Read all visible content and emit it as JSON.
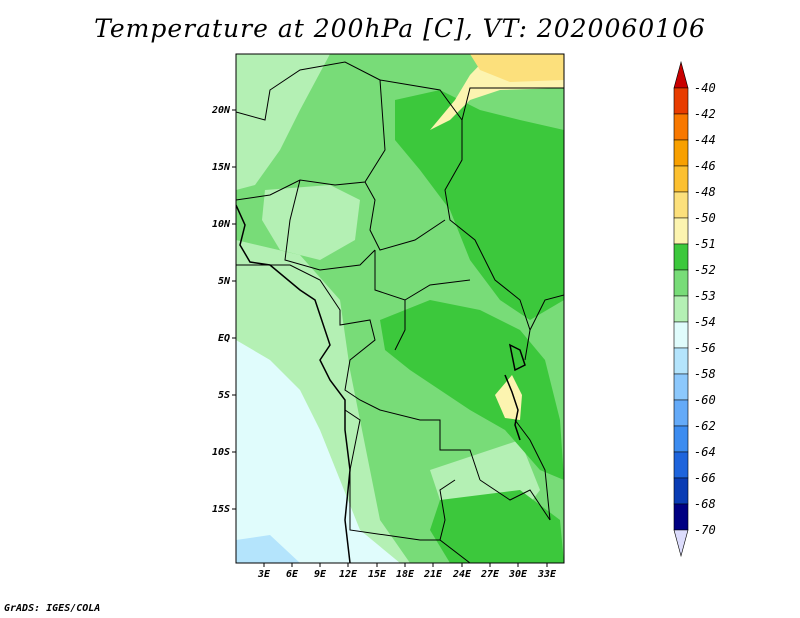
{
  "title": "Temperature at 200hPa [C], VT: 2020060106",
  "footer": "GrADS: IGES/COLA",
  "map": {
    "lat_labels": [
      "20N",
      "15N",
      "10N",
      "5N",
      "EQ",
      "5S",
      "10S",
      "15S"
    ],
    "lon_labels": [
      "3E",
      "6E",
      "9E",
      "12E",
      "15E",
      "18E",
      "21E",
      "24E",
      "27E",
      "30E",
      "33E"
    ]
  },
  "colorbar": {
    "labels": [
      "-40",
      "-42",
      "-44",
      "-46",
      "-48",
      "-50",
      "-51",
      "-52",
      "-53",
      "-54",
      "-56",
      "-58",
      "-60",
      "-62",
      "-64",
      "-66",
      "-68",
      "-70"
    ],
    "colors": [
      "#c80000",
      "#e83c00",
      "#f87800",
      "#f8a000",
      "#fcc030",
      "#fce07c",
      "#fcf4b0",
      "#3cc83c",
      "#78dc78",
      "#b4f0b4",
      "#e0fcfc",
      "#b4e4fc",
      "#8cc8fc",
      "#64aaf8",
      "#3c8cf0",
      "#1e64dc",
      "#0a3cb4",
      "#000082",
      "#dcdcfc"
    ]
  },
  "legend_colors": {
    "le_-54": "#e0fcfc",
    "-54_-53": "#b4f0b4",
    "-53_-52": "#78dc78",
    "-52_-51": "#3cc83c",
    "-51_-50": "#fcf4b0",
    "-50_-48": "#fce07c"
  }
}
